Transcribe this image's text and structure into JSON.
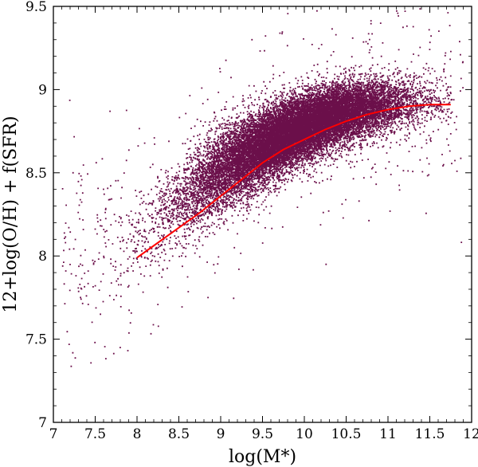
{
  "chart_data": {
    "type": "scatter",
    "xlabel": "log(M*)",
    "ylabel": "12+log(O/H) + f(SFR)",
    "xlim": [
      7,
      12
    ],
    "ylim": [
      7,
      9.5
    ],
    "x_ticks": [
      7,
      7.5,
      8,
      8.5,
      9,
      9.5,
      10,
      10.5,
      11,
      11.5,
      12
    ],
    "x_tick_labels": [
      "7",
      "7.5",
      "8",
      "8.5",
      "9",
      "9.5",
      "10",
      "10.5",
      "11",
      "11.5",
      "12"
    ],
    "y_ticks": [
      7,
      7.5,
      8,
      8.5,
      9,
      9.5
    ],
    "y_tick_labels": [
      "7",
      "7.5",
      "8",
      "8.5",
      "9",
      "9.5"
    ],
    "grid": false,
    "point_color": "#6b0f4a",
    "point_count_approx": 20000,
    "density_ridge": [
      {
        "x": 7.9,
        "y": 8.05,
        "spread": 0.14
      },
      {
        "x": 8.3,
        "y": 8.25,
        "spread": 0.14
      },
      {
        "x": 8.7,
        "y": 8.42,
        "spread": 0.13
      },
      {
        "x": 9.1,
        "y": 8.55,
        "spread": 0.12
      },
      {
        "x": 9.5,
        "y": 8.66,
        "spread": 0.11
      },
      {
        "x": 9.9,
        "y": 8.76,
        "spread": 0.1
      },
      {
        "x": 10.3,
        "y": 8.84,
        "spread": 0.09
      },
      {
        "x": 10.7,
        "y": 8.89,
        "spread": 0.085
      },
      {
        "x": 11.1,
        "y": 8.92,
        "spread": 0.08
      },
      {
        "x": 11.5,
        "y": 8.93,
        "spread": 0.08
      }
    ],
    "series": [
      {
        "type": "line",
        "color": "#ff0000",
        "x": [
          8.0,
          8.25,
          8.5,
          8.75,
          9.0,
          9.25,
          9.5,
          9.75,
          10.0,
          10.25,
          10.5,
          10.75,
          11.0,
          11.25,
          11.5,
          11.75
        ],
        "y": [
          7.99,
          8.08,
          8.17,
          8.26,
          8.36,
          8.46,
          8.56,
          8.64,
          8.7,
          8.76,
          8.81,
          8.85,
          8.88,
          8.9,
          8.91,
          8.91
        ]
      }
    ]
  }
}
